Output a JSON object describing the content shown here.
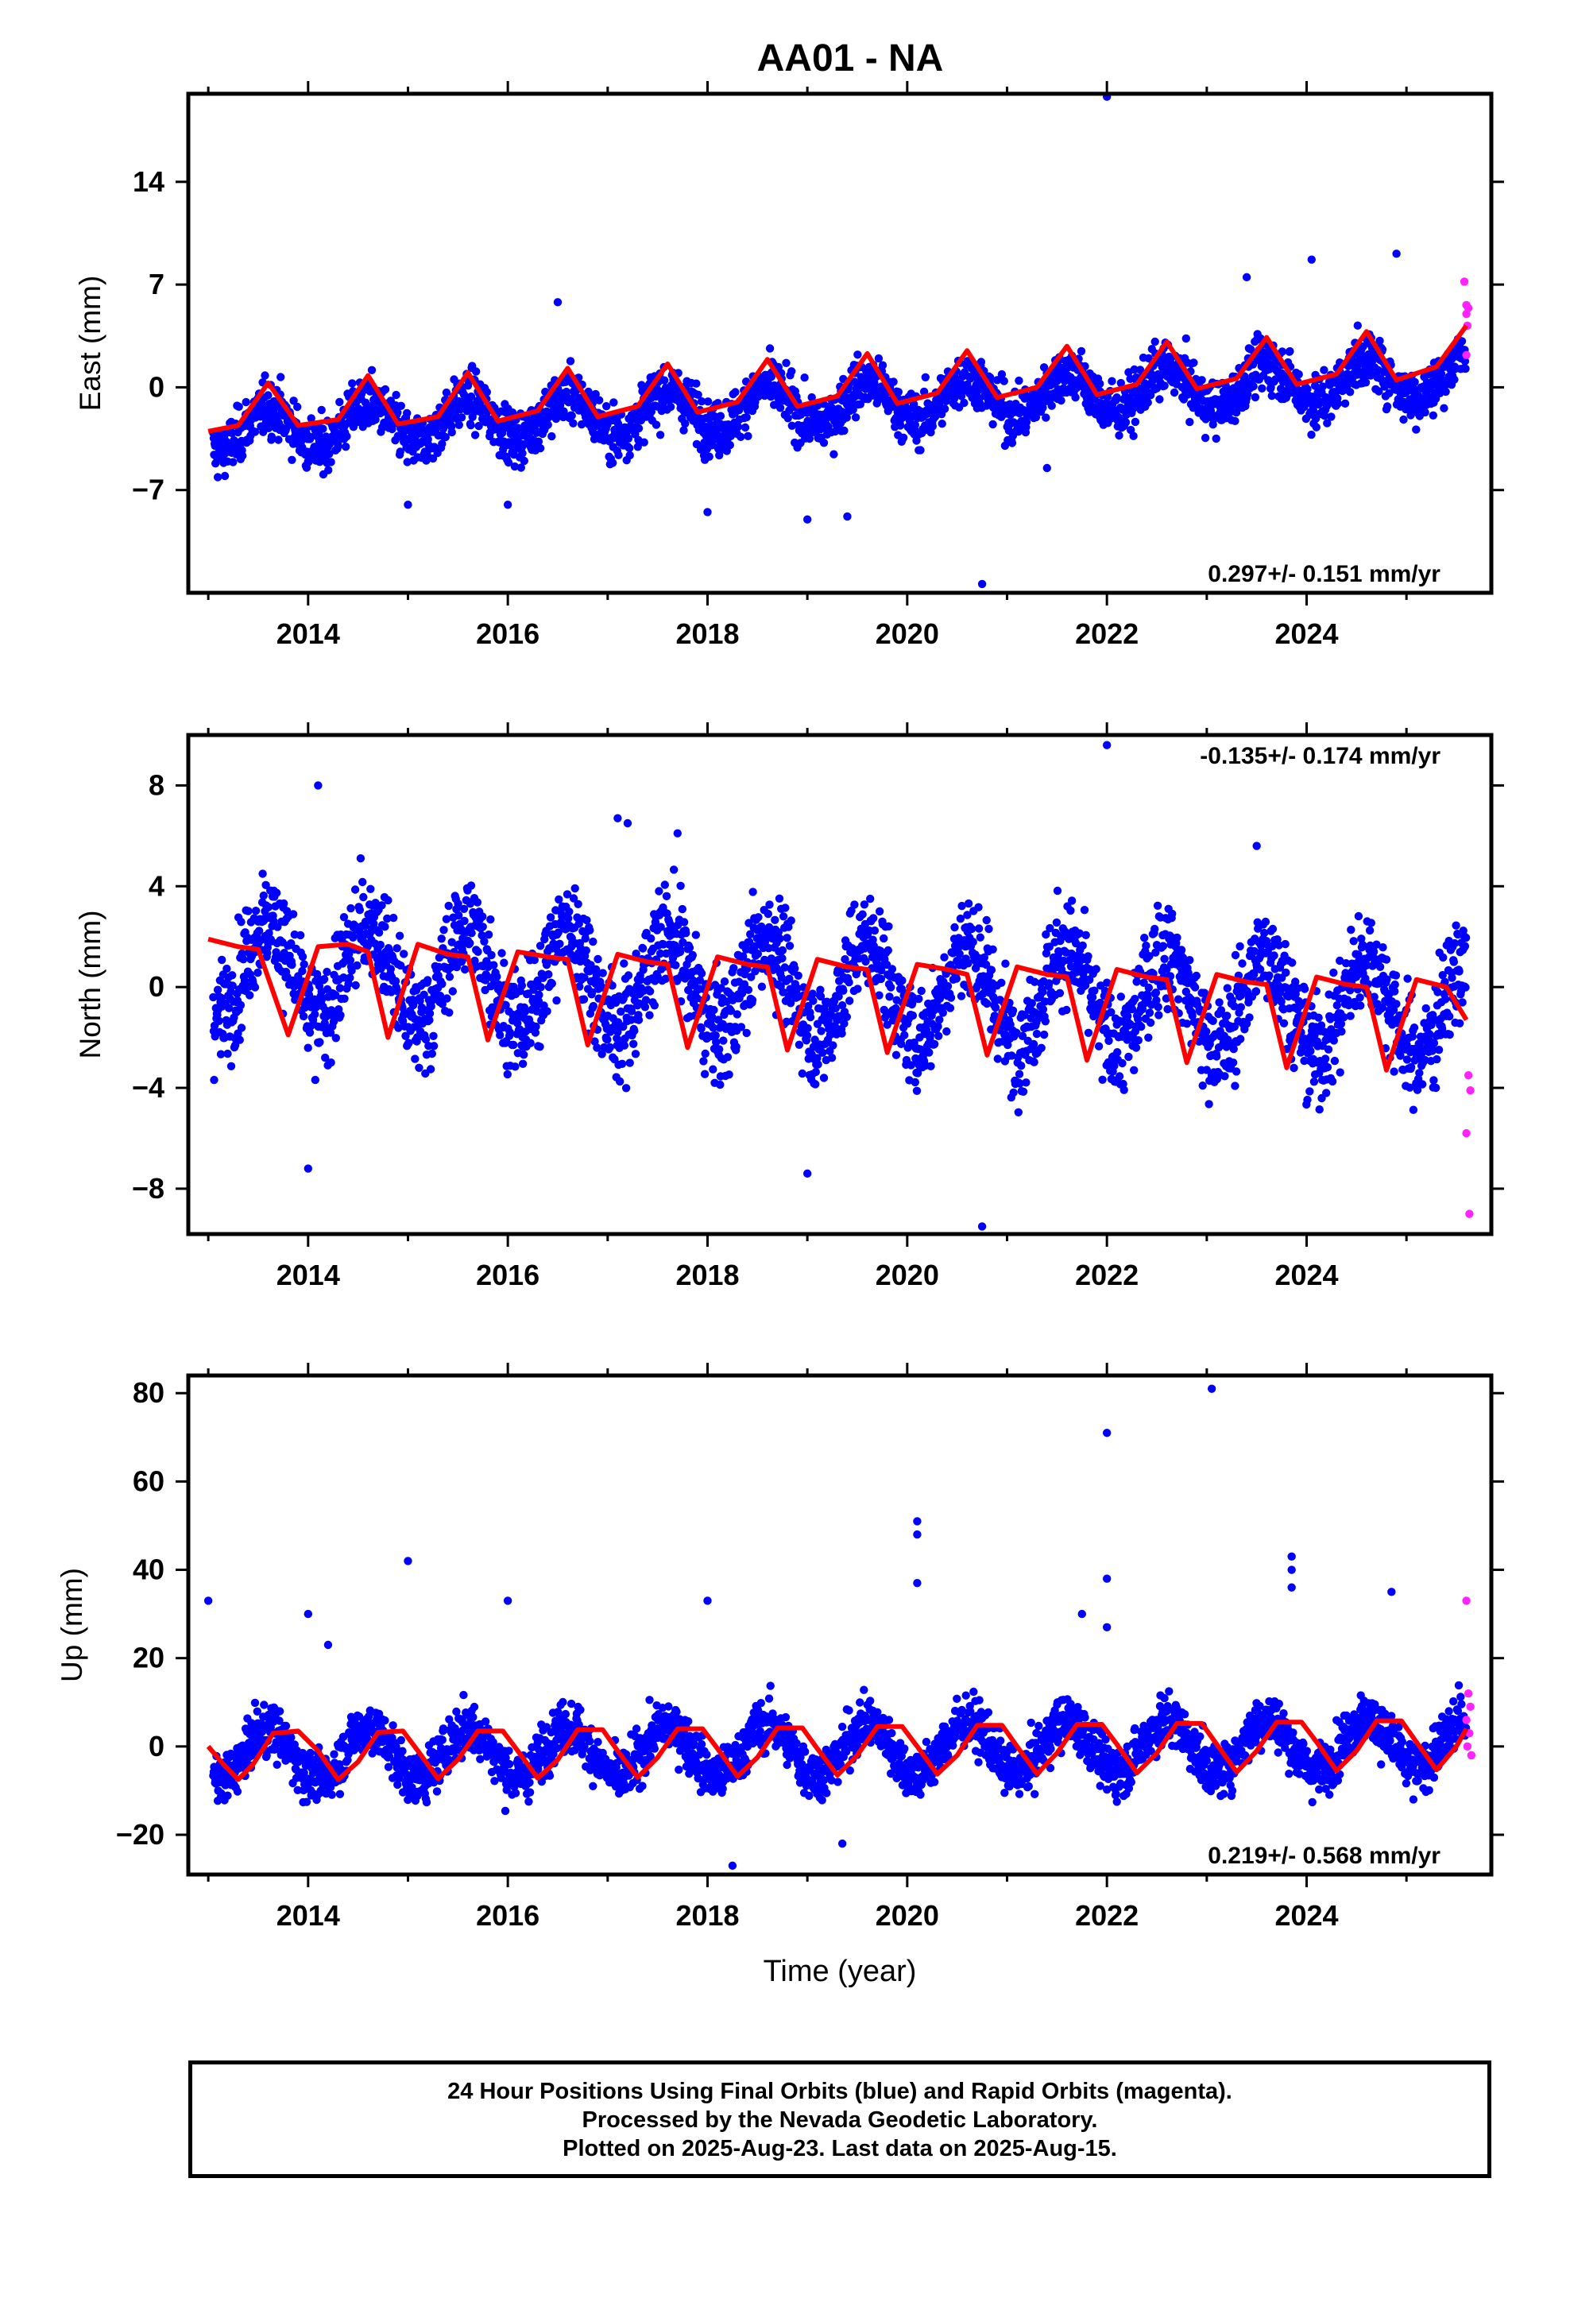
{
  "title": "AA01 - NA",
  "colors": {
    "final": "#0000ff",
    "rapid": "#ff22ff",
    "model": "#ff0000",
    "axis": "#000000"
  },
  "footer": {
    "line1": "24 Hour Positions Using Final Orbits (blue) and Rapid Orbits (magenta).",
    "line2": "Processed by the Nevada Geodetic Laboratory.",
    "line3": "Plotted on 2025-Aug-23. Last data on 2025-Aug-15."
  },
  "chart_data": [
    {
      "type": "scatter",
      "panel": "east",
      "ylabel": "East (mm)",
      "xlabel": "",
      "xlim": [
        2012.8,
        2025.85
      ],
      "ylim": [
        -14,
        20
      ],
      "xticks": [
        2014,
        2016,
        2018,
        2020,
        2022,
        2024
      ],
      "yticks": [
        -7,
        0,
        7,
        14
      ],
      "rate_label": "0.297+/- 0.151 mm/yr",
      "rate_position": "bottom-right",
      "trend": {
        "start": -3.0,
        "slope": 0.3,
        "seasonal_amplitude": 1.4,
        "noise": 1.5
      },
      "outliers": [
        [
          2022.0,
          19.8
        ],
        [
          2020.75,
          -13.4
        ],
        [
          2019.0,
          -9.0
        ],
        [
          2019.4,
          -8.8
        ],
        [
          2018.0,
          -8.5
        ],
        [
          2015.0,
          -8.0
        ],
        [
          2016.0,
          -8.0
        ],
        [
          2021.4,
          -5.5
        ],
        [
          2023.4,
          7.5
        ],
        [
          2024.05,
          8.7
        ],
        [
          2024.9,
          9.1
        ],
        [
          2016.5,
          5.8
        ]
      ],
      "rapid_points": [
        [
          2025.58,
          7.2
        ],
        [
          2025.6,
          5.6
        ],
        [
          2025.6,
          5.0
        ],
        [
          2025.61,
          4.2
        ],
        [
          2025.6,
          2.2
        ],
        [
          2025.62,
          5.4
        ]
      ],
      "model": [
        [
          2013.0,
          -3.0
        ],
        [
          2013.3,
          -2.6
        ],
        [
          2013.6,
          0.3
        ],
        [
          2013.9,
          -2.6
        ],
        [
          2014.3,
          -2.2
        ],
        [
          2014.6,
          0.8
        ],
        [
          2014.9,
          -2.5
        ],
        [
          2015.3,
          -2.0
        ],
        [
          2015.6,
          1.0
        ],
        [
          2015.9,
          -2.3
        ],
        [
          2016.3,
          -1.6
        ],
        [
          2016.6,
          1.3
        ],
        [
          2016.9,
          -2.0
        ],
        [
          2017.3,
          -1.3
        ],
        [
          2017.6,
          1.6
        ],
        [
          2017.9,
          -1.7
        ],
        [
          2018.3,
          -1.0
        ],
        [
          2018.6,
          1.9
        ],
        [
          2018.9,
          -1.3
        ],
        [
          2019.3,
          -0.6
        ],
        [
          2019.6,
          2.3
        ],
        [
          2019.9,
          -1.1
        ],
        [
          2020.3,
          -0.4
        ],
        [
          2020.6,
          2.5
        ],
        [
          2020.9,
          -0.7
        ],
        [
          2021.3,
          0.0
        ],
        [
          2021.6,
          2.8
        ],
        [
          2021.9,
          -0.5
        ],
        [
          2022.3,
          0.2
        ],
        [
          2022.6,
          3.1
        ],
        [
          2022.9,
          -0.1
        ],
        [
          2023.3,
          0.6
        ],
        [
          2023.6,
          3.4
        ],
        [
          2023.9,
          0.2
        ],
        [
          2024.3,
          0.9
        ],
        [
          2024.6,
          3.8
        ],
        [
          2024.9,
          0.5
        ],
        [
          2025.3,
          1.4
        ],
        [
          2025.6,
          4.2
        ]
      ]
    },
    {
      "type": "scatter",
      "panel": "north",
      "ylabel": "North (mm)",
      "xlabel": "",
      "xlim": [
        2012.8,
        2025.85
      ],
      "ylim": [
        -9.8,
        10
      ],
      "xticks": [
        2014,
        2016,
        2018,
        2020,
        2022,
        2024
      ],
      "yticks": [
        -8,
        -4,
        0,
        4,
        8
      ],
      "rate_label": "-0.135+/- 0.174 mm/yr",
      "rate_position": "top-right",
      "trend": {
        "start": 0.8,
        "slope": -0.135,
        "seasonal_amplitude": 1.9,
        "noise": 1.7
      },
      "outliers": [
        [
          2022.0,
          9.6
        ],
        [
          2014.1,
          8.0
        ],
        [
          2017.1,
          6.7
        ],
        [
          2017.2,
          6.5
        ],
        [
          2014.0,
          -7.2
        ],
        [
          2019.0,
          -7.4
        ],
        [
          2020.75,
          -9.5
        ],
        [
          2023.5,
          5.6
        ],
        [
          2017.7,
          6.1
        ]
      ],
      "rapid_points": [
        [
          2025.62,
          -3.5
        ],
        [
          2025.64,
          -4.1
        ],
        [
          2025.6,
          -5.8
        ],
        [
          2025.63,
          -9.0
        ]
      ],
      "model": [
        [
          2013.0,
          1.9
        ],
        [
          2013.3,
          1.6
        ],
        [
          2013.5,
          1.5
        ],
        [
          2013.8,
          -1.9
        ],
        [
          2014.1,
          1.6
        ],
        [
          2014.4,
          1.7
        ],
        [
          2014.6,
          1.4
        ],
        [
          2014.8,
          -2.0
        ],
        [
          2015.1,
          1.7
        ],
        [
          2015.4,
          1.3
        ],
        [
          2015.6,
          1.2
        ],
        [
          2015.8,
          -2.1
        ],
        [
          2016.1,
          1.4
        ],
        [
          2016.4,
          1.2
        ],
        [
          2016.6,
          1.1
        ],
        [
          2016.8,
          -2.3
        ],
        [
          2017.1,
          1.3
        ],
        [
          2017.4,
          1.0
        ],
        [
          2017.6,
          0.9
        ],
        [
          2017.8,
          -2.4
        ],
        [
          2018.1,
          1.2
        ],
        [
          2018.4,
          0.9
        ],
        [
          2018.6,
          0.8
        ],
        [
          2018.8,
          -2.5
        ],
        [
          2019.1,
          1.1
        ],
        [
          2019.4,
          0.8
        ],
        [
          2019.6,
          0.7
        ],
        [
          2019.8,
          -2.6
        ],
        [
          2020.1,
          0.9
        ],
        [
          2020.4,
          0.7
        ],
        [
          2020.6,
          0.5
        ],
        [
          2020.8,
          -2.7
        ],
        [
          2021.1,
          0.8
        ],
        [
          2021.4,
          0.5
        ],
        [
          2021.6,
          0.4
        ],
        [
          2021.8,
          -2.9
        ],
        [
          2022.1,
          0.7
        ],
        [
          2022.4,
          0.4
        ],
        [
          2022.6,
          0.3
        ],
        [
          2022.8,
          -3.0
        ],
        [
          2023.1,
          0.5
        ],
        [
          2023.4,
          0.2
        ],
        [
          2023.6,
          0.1
        ],
        [
          2023.8,
          -3.2
        ],
        [
          2024.1,
          0.4
        ],
        [
          2024.4,
          0.1
        ],
        [
          2024.6,
          0.0
        ],
        [
          2024.8,
          -3.3
        ],
        [
          2025.1,
          0.3
        ],
        [
          2025.4,
          0.0
        ],
        [
          2025.6,
          -1.3
        ]
      ]
    },
    {
      "type": "scatter",
      "panel": "up",
      "ylabel": "Up (mm)",
      "xlabel": "Time (year)",
      "xlim": [
        2012.8,
        2025.85
      ],
      "ylim": [
        -29,
        84
      ],
      "xticks": [
        2014,
        2016,
        2018,
        2020,
        2022,
        2024
      ],
      "yticks": [
        -20,
        0,
        20,
        40,
        60,
        80
      ],
      "rate_label": "0.219+/- 0.568 mm/yr",
      "rate_position": "bottom-right",
      "trend": {
        "start": -2.0,
        "slope": 0.22,
        "seasonal_amplitude": 5.8,
        "noise": 4.8
      },
      "outliers": [
        [
          2023.05,
          81
        ],
        [
          2022.0,
          71
        ],
        [
          2020.1,
          51
        ],
        [
          2020.1,
          48
        ],
        [
          2020.1,
          37
        ],
        [
          2023.85,
          43
        ],
        [
          2023.85,
          40
        ],
        [
          2023.85,
          36
        ],
        [
          2015.0,
          42
        ],
        [
          2013.0,
          33
        ],
        [
          2016.0,
          33
        ],
        [
          2018.0,
          33
        ],
        [
          2022.0,
          38
        ],
        [
          2024.85,
          35
        ],
        [
          2014.0,
          30
        ],
        [
          2018.25,
          -27
        ],
        [
          2019.35,
          -22
        ],
        [
          2014.2,
          23
        ],
        [
          2021.75,
          30
        ],
        [
          2022.0,
          27
        ]
      ],
      "rapid_points": [
        [
          2025.6,
          33
        ],
        [
          2025.62,
          12
        ],
        [
          2025.64,
          9
        ],
        [
          2025.6,
          6
        ],
        [
          2025.63,
          3
        ],
        [
          2025.61,
          0
        ],
        [
          2025.65,
          -2
        ]
      ],
      "model": [
        [
          2013.0,
          0.0
        ],
        [
          2013.15,
          -4.0
        ],
        [
          2013.3,
          -7.5
        ],
        [
          2013.45,
          -4.0
        ],
        [
          2013.65,
          3.0
        ],
        [
          2013.9,
          3.5
        ],
        [
          2014.1,
          -1.0
        ],
        [
          2014.3,
          -7.5
        ],
        [
          2014.5,
          -3.5
        ],
        [
          2014.7,
          3.2
        ],
        [
          2014.95,
          3.5
        ],
        [
          2015.1,
          -1.0
        ],
        [
          2015.3,
          -7.3
        ],
        [
          2015.5,
          -3.0
        ],
        [
          2015.7,
          3.5
        ],
        [
          2015.95,
          3.5
        ],
        [
          2016.1,
          -1.0
        ],
        [
          2016.3,
          -7.2
        ],
        [
          2016.5,
          -3.0
        ],
        [
          2016.7,
          3.8
        ],
        [
          2016.95,
          3.8
        ],
        [
          2017.1,
          -1.0
        ],
        [
          2017.3,
          -7.0
        ],
        [
          2017.5,
          -2.5
        ],
        [
          2017.7,
          4.0
        ],
        [
          2017.95,
          4.0
        ],
        [
          2018.1,
          -0.5
        ],
        [
          2018.3,
          -6.8
        ],
        [
          2018.5,
          -2.5
        ],
        [
          2018.7,
          4.2
        ],
        [
          2018.95,
          4.2
        ],
        [
          2019.1,
          -0.5
        ],
        [
          2019.3,
          -6.5
        ],
        [
          2019.5,
          -2.0
        ],
        [
          2019.7,
          4.5
        ],
        [
          2019.95,
          4.5
        ],
        [
          2020.1,
          0.0
        ],
        [
          2020.3,
          -6.3
        ],
        [
          2020.5,
          -2.0
        ],
        [
          2020.7,
          4.8
        ],
        [
          2020.95,
          4.8
        ],
        [
          2021.1,
          0.0
        ],
        [
          2021.3,
          -6.2
        ],
        [
          2021.5,
          -1.5
        ],
        [
          2021.7,
          5.0
        ],
        [
          2021.95,
          5.0
        ],
        [
          2022.1,
          0.5
        ],
        [
          2022.3,
          -6.0
        ],
        [
          2022.5,
          -1.5
        ],
        [
          2022.7,
          5.2
        ],
        [
          2022.95,
          5.2
        ],
        [
          2023.1,
          0.5
        ],
        [
          2023.3,
          -5.8
        ],
        [
          2023.5,
          -1.0
        ],
        [
          2023.7,
          5.5
        ],
        [
          2023.95,
          5.5
        ],
        [
          2024.1,
          1.0
        ],
        [
          2024.3,
          -5.5
        ],
        [
          2024.5,
          -1.0
        ],
        [
          2024.7,
          5.8
        ],
        [
          2024.95,
          5.8
        ],
        [
          2025.1,
          1.0
        ],
        [
          2025.3,
          -5.3
        ],
        [
          2025.5,
          0.0
        ],
        [
          2025.6,
          4.0
        ]
      ]
    }
  ]
}
